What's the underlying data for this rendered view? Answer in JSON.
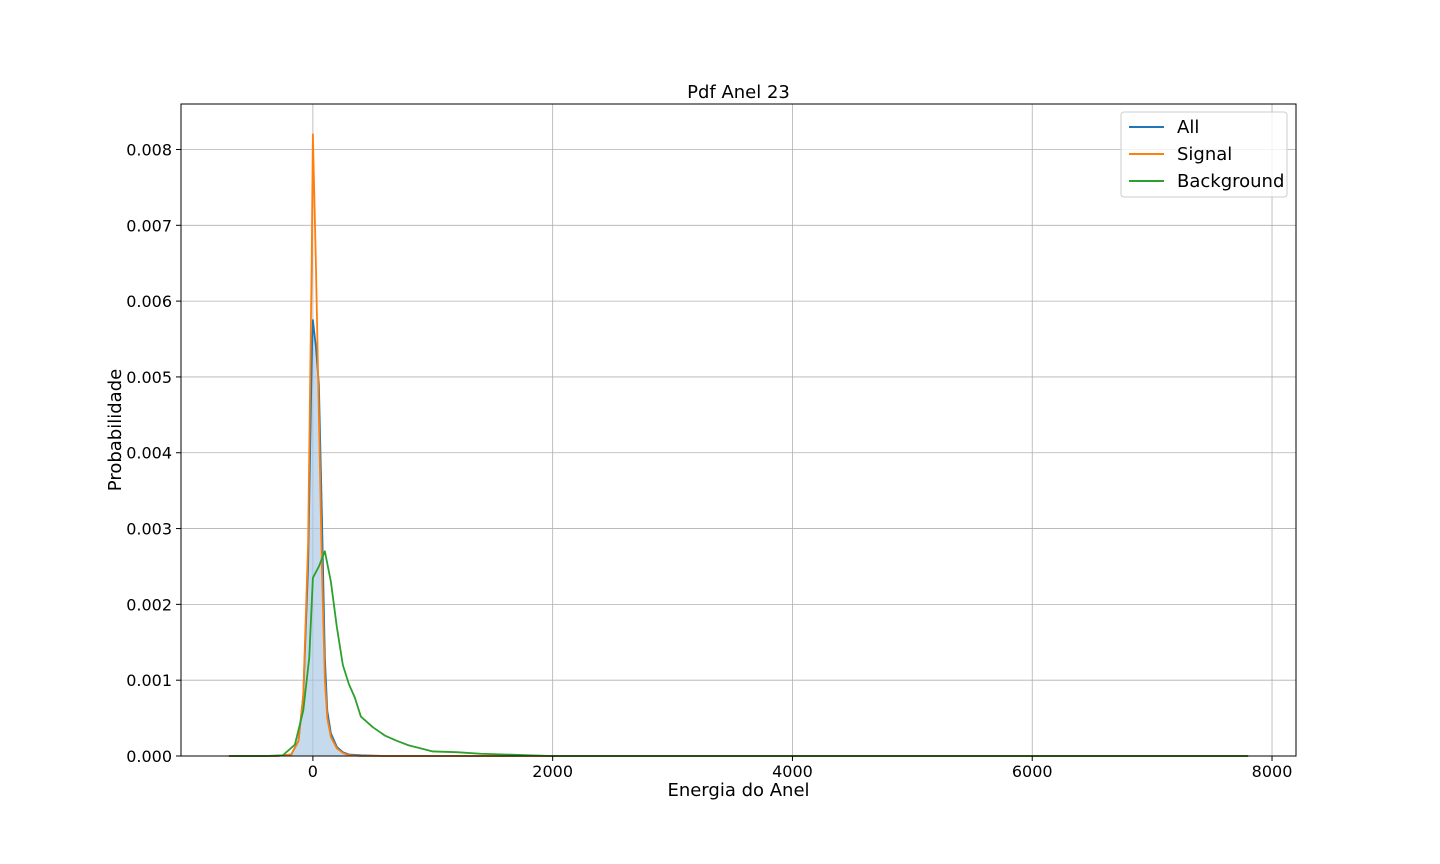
{
  "chart_data": {
    "type": "line",
    "title": "Pdf Anel 23",
    "xlabel": "Energia do Anel",
    "ylabel": "Probabilidade",
    "xlim": [
      -1100,
      8200
    ],
    "ylim": [
      0,
      0.0086
    ],
    "xticks": [
      0,
      2000,
      4000,
      6000,
      8000
    ],
    "xtick_labels": [
      "0",
      "2000",
      "4000",
      "6000",
      "8000"
    ],
    "yticks": [
      0,
      0.001,
      0.002,
      0.003,
      0.004,
      0.005,
      0.006,
      0.007,
      0.008
    ],
    "ytick_labels": [
      "0.000",
      "0.001",
      "0.002",
      "0.003",
      "0.004",
      "0.005",
      "0.006",
      "0.007",
      "0.008"
    ],
    "grid": true,
    "legend_position": "top-right",
    "series": [
      {
        "name": "All",
        "color": "#1f77b4",
        "fill": true,
        "fill_color": "#a6c8e3",
        "x": [
          -700,
          -300,
          -180,
          -120,
          -80,
          -40,
          -10,
          0,
          25,
          50,
          75,
          100,
          120,
          150,
          200,
          250,
          300,
          400,
          600,
          1000,
          2000,
          4000,
          6000,
          7800
        ],
        "y": [
          0,
          0,
          2e-05,
          0.0002,
          0.0008,
          0.0025,
          0.0052,
          0.00575,
          0.0054,
          0.0049,
          0.0032,
          0.0013,
          0.0006,
          0.0003,
          0.00012,
          5e-05,
          2e-05,
          1e-05,
          0,
          0,
          0,
          0,
          0,
          0
        ]
      },
      {
        "name": "Signal",
        "color": "#ff7f0e",
        "fill": false,
        "x": [
          -700,
          -300,
          -180,
          -120,
          -80,
          -40,
          -10,
          0,
          25,
          50,
          75,
          100,
          120,
          150,
          200,
          250,
          300,
          400,
          600,
          1000,
          2000,
          4000,
          6000,
          7800
        ],
        "y": [
          0,
          0,
          2e-05,
          0.0002,
          0.0008,
          0.0028,
          0.0065,
          0.0082,
          0.0065,
          0.0045,
          0.0025,
          0.001,
          0.0005,
          0.00025,
          0.0001,
          4e-05,
          1e-05,
          0,
          0,
          0,
          0,
          0,
          0,
          0
        ]
      },
      {
        "name": "Background",
        "color": "#2ca02c",
        "fill": false,
        "x": [
          -700,
          -400,
          -250,
          -150,
          -80,
          -30,
          0,
          50,
          100,
          150,
          200,
          250,
          300,
          350,
          400,
          500,
          600,
          700,
          800,
          900,
          1000,
          1200,
          1400,
          1600,
          1800,
          2000,
          3000,
          4000,
          6000,
          7800
        ],
        "y": [
          0,
          0,
          1e-05,
          0.00015,
          0.0006,
          0.0013,
          0.00235,
          0.0025,
          0.0027,
          0.0023,
          0.0017,
          0.0012,
          0.00095,
          0.00077,
          0.00052,
          0.00038,
          0.00027,
          0.0002,
          0.00014,
          0.0001,
          6e-05,
          5e-05,
          3e-05,
          2e-05,
          1e-05,
          0,
          0,
          0,
          0,
          0
        ]
      }
    ]
  }
}
